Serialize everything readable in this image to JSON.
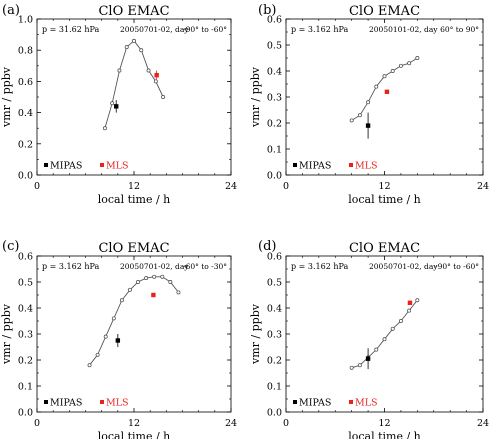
{
  "chart_data": [
    {
      "type": "line",
      "panel_label": "(a)",
      "title": "ClO EMAC",
      "pressure_label": "p = 31.62 hPa",
      "date_label": "20050701-02, day",
      "lat_label": "-90° to -60°",
      "xlabel": "local time / h",
      "ylabel": "vmr / ppbv",
      "xlim": [
        0,
        24
      ],
      "ylim": [
        0,
        1.0
      ],
      "xticks": [
        0,
        12,
        24
      ],
      "xtick_labels": [
        "0",
        "12",
        "24"
      ],
      "yticks": [
        0,
        0.2,
        0.4,
        0.6,
        0.8,
        1.0
      ],
      "ytick_labels": [
        "0.0",
        "0.2",
        "0.4",
        "0.6",
        "0.8",
        "1.0"
      ],
      "legend": [
        {
          "label": "MIPAS",
          "color": "#000000"
        },
        {
          "label": "MLS",
          "color": "#e8231e"
        }
      ],
      "legend_position": "bottom-left",
      "series": [
        {
          "x": [
            8.4,
            9.3,
            10.2,
            11.1,
            12.0,
            12.9,
            13.8,
            14.7,
            15.6
          ],
          "y": [
            0.3,
            0.46,
            0.67,
            0.82,
            0.86,
            0.8,
            0.67,
            0.6,
            0.5
          ]
        }
      ],
      "mipas": {
        "x": 9.8,
        "y": 0.44,
        "err": 0.04
      },
      "mls": {
        "x": 14.8,
        "y": 0.64,
        "err": 0.03
      }
    },
    {
      "type": "line",
      "panel_label": "(b)",
      "title": "ClO EMAC",
      "pressure_label": "p = 3.162 hPa",
      "date_label": "20050101-02, day",
      "lat_label": "60° to 90°",
      "xlabel": "local time / h",
      "ylabel": "vmr / ppbv",
      "xlim": [
        0,
        24
      ],
      "ylim": [
        0,
        0.6
      ],
      "xticks": [
        0,
        12,
        24
      ],
      "xtick_labels": [
        "0",
        "12",
        "24"
      ],
      "yticks": [
        0,
        0.1,
        0.2,
        0.3,
        0.4,
        0.5,
        0.6
      ],
      "ytick_labels": [
        "0.0",
        "0.1",
        "0.2",
        "0.3",
        "0.4",
        "0.5",
        "0.6"
      ],
      "legend": [
        {
          "label": "MIPAS",
          "color": "#000000"
        },
        {
          "label": "MLS",
          "color": "#e8231e"
        }
      ],
      "legend_position": "bottom-left",
      "series": [
        {
          "x": [
            8.0,
            9.0,
            10.0,
            11.0,
            12.0,
            13.0,
            14.0,
            15.0,
            16.0
          ],
          "y": [
            0.21,
            0.23,
            0.28,
            0.34,
            0.38,
            0.4,
            0.42,
            0.43,
            0.45
          ]
        }
      ],
      "mipas": {
        "x": 10.0,
        "y": 0.19,
        "err": 0.05
      },
      "mls": {
        "x": 12.3,
        "y": 0.32,
        "err": 0.005
      }
    },
    {
      "type": "line",
      "panel_label": "(c)",
      "title": "ClO EMAC",
      "pressure_label": "p = 3.162 hPa",
      "date_label": "20050701-02, day",
      "lat_label": "-60° to -30°",
      "xlabel": "local time / h",
      "ylabel": "vmr / ppbv",
      "xlim": [
        0,
        24
      ],
      "ylim": [
        0,
        0.6
      ],
      "xticks": [
        0,
        12,
        24
      ],
      "xtick_labels": [
        "0",
        "12",
        "24"
      ],
      "yticks": [
        0,
        0.1,
        0.2,
        0.3,
        0.4,
        0.5,
        0.6
      ],
      "ytick_labels": [
        "0.0",
        "0.1",
        "0.2",
        "0.3",
        "0.4",
        "0.5",
        "0.6"
      ],
      "legend": [
        {
          "label": "MIPAS",
          "color": "#000000"
        },
        {
          "label": "MLS",
          "color": "#e8231e"
        }
      ],
      "legend_position": "bottom-left",
      "series": [
        {
          "x": [
            6.5,
            7.5,
            8.5,
            9.5,
            10.5,
            11.5,
            12.5,
            13.5,
            14.5,
            15.5,
            16.5,
            17.5
          ],
          "y": [
            0.18,
            0.22,
            0.29,
            0.36,
            0.43,
            0.47,
            0.5,
            0.515,
            0.52,
            0.52,
            0.5,
            0.46
          ]
        }
      ],
      "mipas": {
        "x": 10.0,
        "y": 0.275,
        "err": 0.025
      },
      "mls": {
        "x": 14.4,
        "y": 0.45,
        "err": 0.005
      }
    },
    {
      "type": "line",
      "panel_label": "(d)",
      "title": "ClO EMAC",
      "pressure_label": "p = 3.162 hPa",
      "date_label": "20050701-02, day",
      "lat_label": "-90° to -60°",
      "xlabel": "local time / h",
      "ylabel": "vmr / ppbv",
      "xlim": [
        0,
        24
      ],
      "ylim": [
        0,
        0.6
      ],
      "xticks": [
        0,
        12,
        24
      ],
      "xtick_labels": [
        "0",
        "12",
        "24"
      ],
      "yticks": [
        0,
        0.1,
        0.2,
        0.3,
        0.4,
        0.5,
        0.6
      ],
      "ytick_labels": [
        "0.0",
        "0.1",
        "0.2",
        "0.3",
        "0.4",
        "0.5",
        "0.6"
      ],
      "legend": [
        {
          "label": "MIPAS",
          "color": "#000000"
        },
        {
          "label": "MLS",
          "color": "#e8231e"
        }
      ],
      "legend_position": "bottom-left",
      "series": [
        {
          "x": [
            8.0,
            9.0,
            10.0,
            11.0,
            12.0,
            13.0,
            14.0,
            15.0,
            16.0
          ],
          "y": [
            0.17,
            0.18,
            0.21,
            0.24,
            0.28,
            0.32,
            0.35,
            0.39,
            0.43
          ]
        }
      ],
      "mipas": {
        "x": 10.0,
        "y": 0.205,
        "err": 0.04
      },
      "mls": {
        "x": 15.1,
        "y": 0.42,
        "err": 0.005
      }
    }
  ]
}
